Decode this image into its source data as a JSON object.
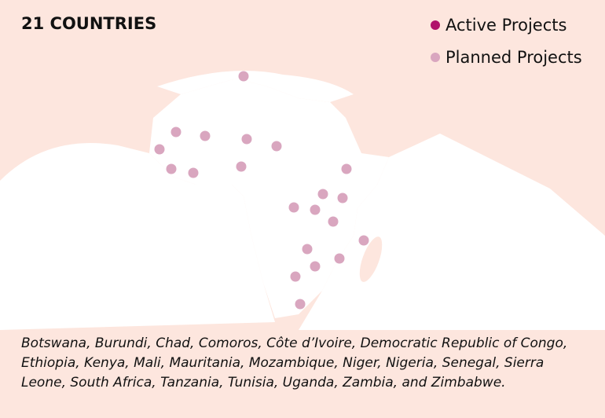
{
  "header": {
    "title": "21 COUNTRIES"
  },
  "legend": [
    {
      "label": "Active Projects",
      "color": "#b0136b"
    },
    {
      "label": "Planned Projects",
      "color": "#d9a6bf"
    }
  ],
  "caption": "Botswana, Burundi, Chad, Comoros, Côte d’Ivoire, Democratic Republic of Congo, Ethiopia, Kenya, Mali, Mauritania, Mozambique, Niger, Nigeria, Senegal, Sierra Leone, South Africa, Tanzania, Tunisia, Uganda, Zambia, and Zimbabwe."
}
